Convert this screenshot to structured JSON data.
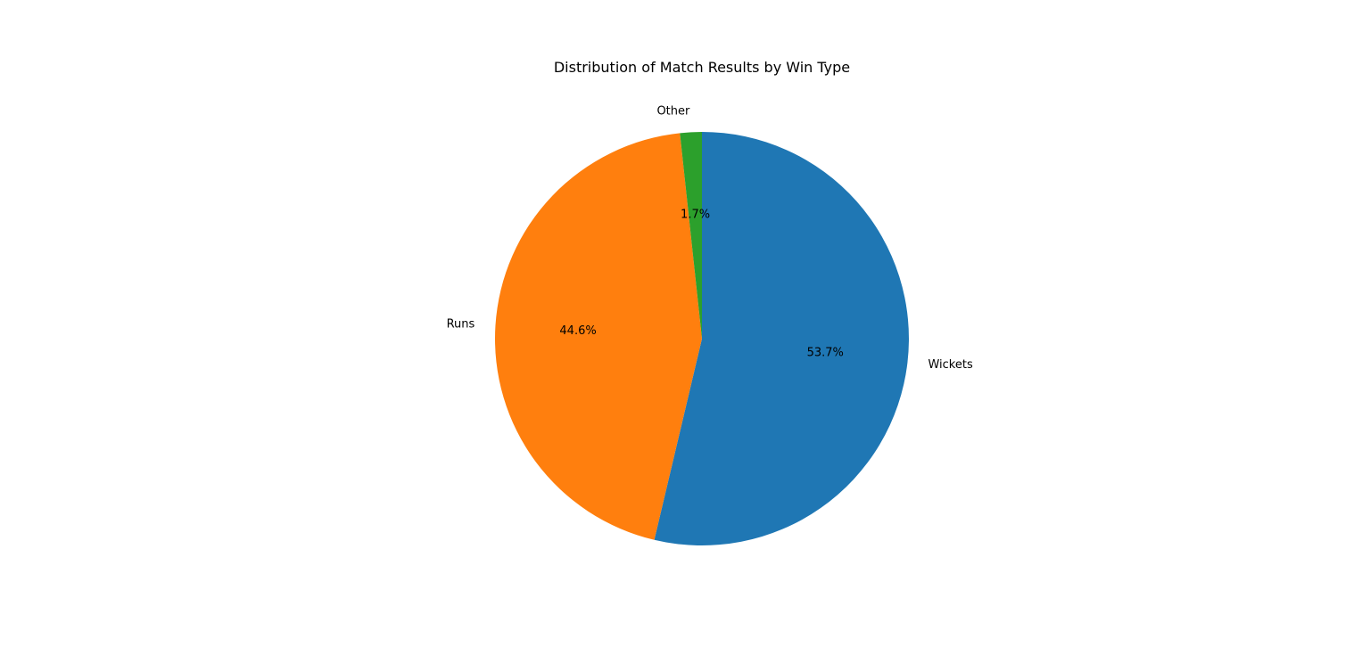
{
  "chart_data": {
    "type": "pie",
    "title": "Distribution of Match Results by Win Type",
    "start_angle_deg": 90,
    "direction": "clockwise",
    "slices": [
      {
        "label": "Wickets",
        "value": 53.7,
        "pct_label": "53.7%",
        "color": "#1f77b4"
      },
      {
        "label": "Runs",
        "value": 44.6,
        "pct_label": "44.6%",
        "color": "#ff7f0e"
      },
      {
        "label": "Other",
        "value": 1.7,
        "pct_label": "1.7%",
        "color": "#2ca02c"
      }
    ]
  }
}
